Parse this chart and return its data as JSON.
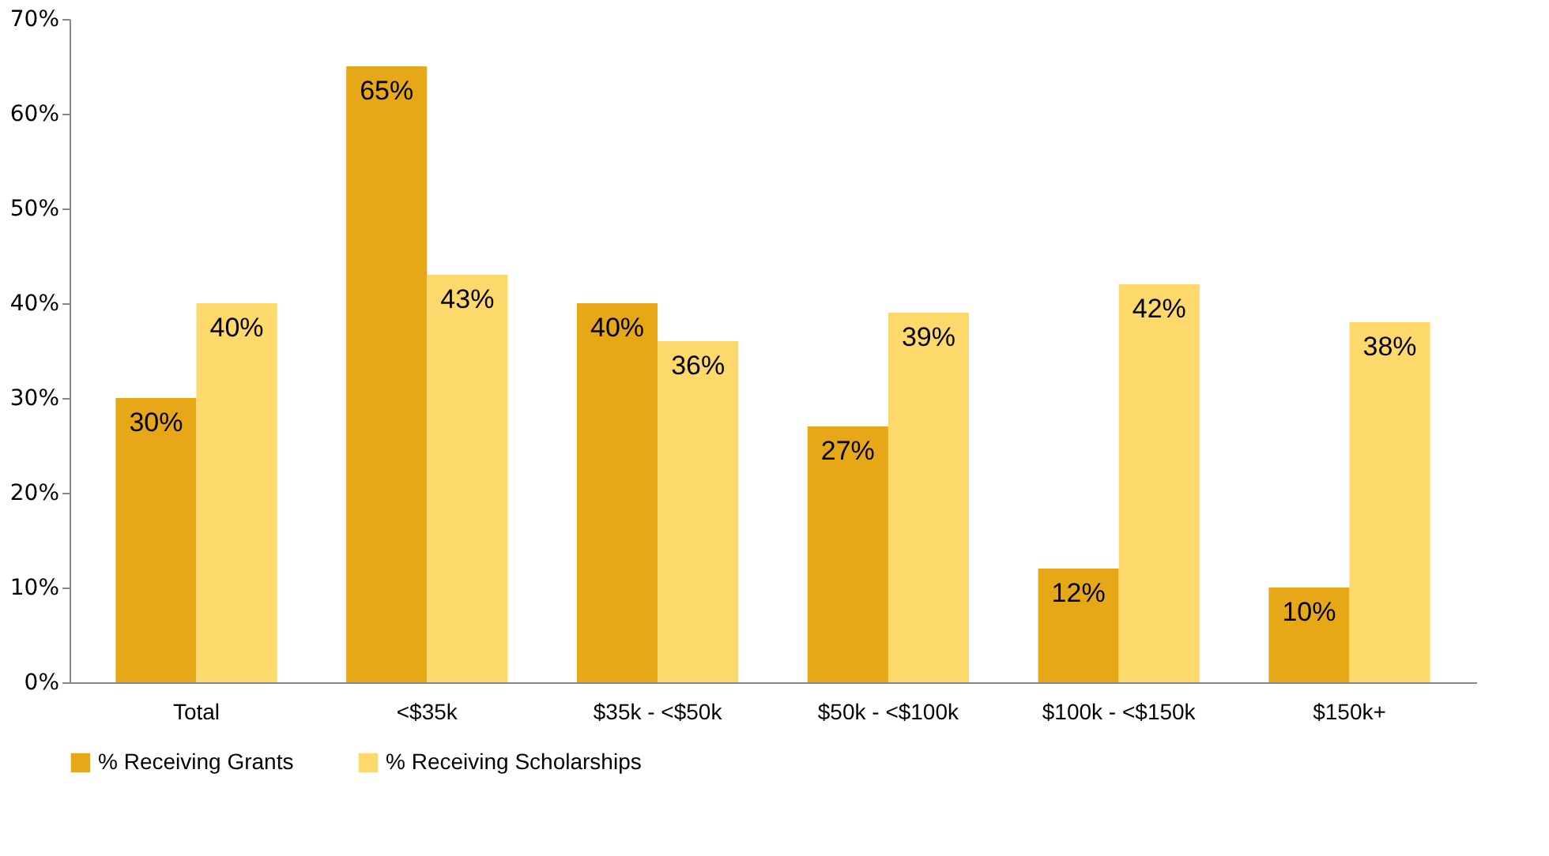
{
  "chart_data": {
    "type": "bar",
    "categories": [
      "Total",
      "<$35k",
      "$35k - <$50k",
      "$50k - <$100k",
      "$100k - <$150k",
      "$150k+"
    ],
    "series": [
      {
        "name": "% Receiving Grants",
        "color": "#e6a817",
        "values": [
          30,
          65,
          40,
          27,
          12,
          10
        ],
        "value_labels": [
          "30%",
          "65%",
          "40%",
          "27%",
          "12%",
          "10%"
        ]
      },
      {
        "name": "% Receiving Scholarships",
        "color": "#fdd96b",
        "values": [
          40,
          43,
          36,
          39,
          42,
          38
        ],
        "value_labels": [
          "40%",
          "43%",
          "36%",
          "39%",
          "42%",
          "38%"
        ]
      }
    ],
    "ylim": [
      0,
      70
    ],
    "yticks": [
      {
        "value": 0,
        "label": "0%"
      },
      {
        "value": 10,
        "label": "10%"
      },
      {
        "value": 20,
        "label": "20%"
      },
      {
        "value": 30,
        "label": "30%"
      },
      {
        "value": 40,
        "label": "40%"
      },
      {
        "value": 50,
        "label": "50%"
      },
      {
        "value": 60,
        "label": "60%"
      },
      {
        "value": 70,
        "label": "70%"
      }
    ],
    "grid": false,
    "legend": "bottom"
  }
}
